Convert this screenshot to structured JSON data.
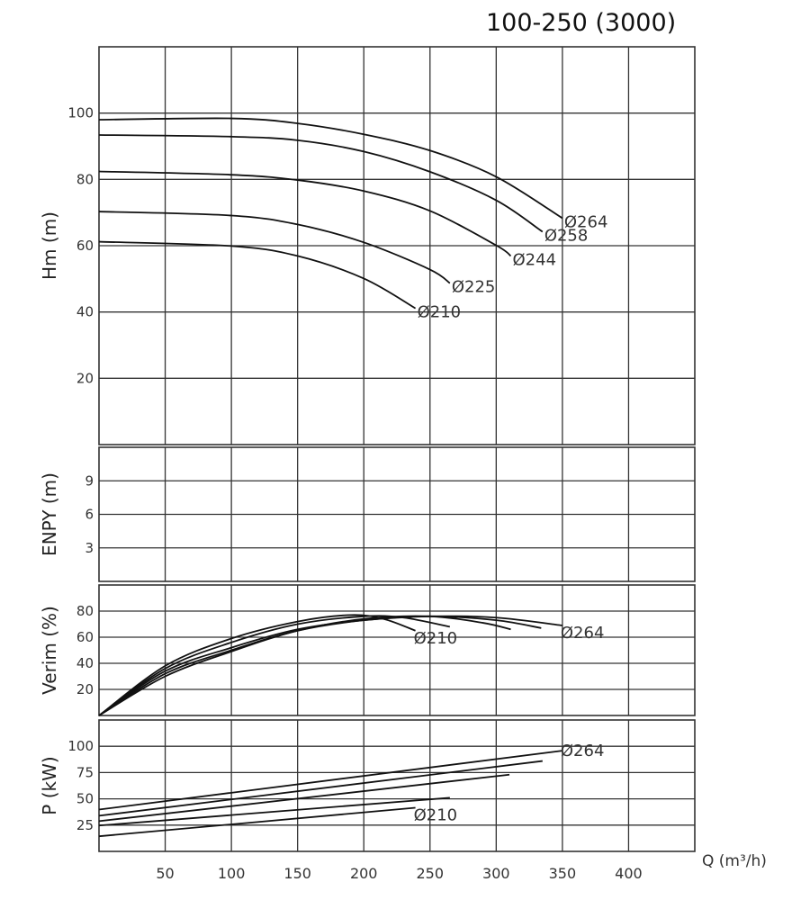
{
  "chart_data": {
    "type": "line",
    "title": "100-250 (3000)",
    "xlabel": "Q (m³/h)",
    "xlim": [
      0,
      450
    ],
    "x_ticks": [
      50,
      100,
      150,
      200,
      250,
      300,
      350,
      400
    ],
    "grid": true,
    "panels": [
      {
        "id": "head",
        "ylabel": "Hm (m)",
        "ylim": [
          0,
          120
        ],
        "y_ticks": [
          20,
          40,
          60,
          80,
          100
        ],
        "series": [
          {
            "name": "Ø264",
            "points": [
              [
                0,
                98
              ],
              [
                100,
                98.4
              ],
              [
                150,
                96.9
              ],
              [
                200,
                93.6
              ],
              [
                250,
                88.7
              ],
              [
                300,
                80.8
              ],
              [
                350,
                68.3
              ]
            ]
          },
          {
            "name": "Ø258",
            "points": [
              [
                0,
                93.4
              ],
              [
                100,
                92.9
              ],
              [
                150,
                91.8
              ],
              [
                200,
                88.4
              ],
              [
                250,
                82.3
              ],
              [
                300,
                73.7
              ],
              [
                335,
                64.2
              ]
            ]
          },
          {
            "name": "Ø244",
            "points": [
              [
                0,
                82.4
              ],
              [
                100,
                81.4
              ],
              [
                150,
                79.8
              ],
              [
                200,
                76.5
              ],
              [
                250,
                70.5
              ],
              [
                300,
                60.1
              ],
              [
                311,
                56.9
              ]
            ]
          },
          {
            "name": "Ø225",
            "points": [
              [
                0,
                70.3
              ],
              [
                100,
                69.1
              ],
              [
                150,
                66.4
              ],
              [
                200,
                61
              ],
              [
                250,
                52.8
              ],
              [
                265,
                48.7
              ]
            ]
          },
          {
            "name": "Ø210",
            "points": [
              [
                0,
                61.2
              ],
              [
                100,
                59.9
              ],
              [
                150,
                56.9
              ],
              [
                200,
                50.1
              ],
              [
                239,
                41.1
              ]
            ]
          }
        ],
        "annotations": [
          "Ø264",
          "Ø258",
          "Ø244",
          "Ø225",
          "Ø210"
        ]
      },
      {
        "id": "npsh",
        "ylabel": "ENPY (m)",
        "ylim": [
          0,
          12
        ],
        "y_ticks": [
          3,
          6,
          9
        ],
        "series": [],
        "annotations": []
      },
      {
        "id": "efficiency",
        "ylabel": "Verim (%)",
        "ylim": [
          0,
          100
        ],
        "y_ticks": [
          20,
          40,
          60,
          80
        ],
        "series": [
          {
            "name": "Ø264",
            "points": [
              [
                0,
                0
              ],
              [
                50,
                34
              ],
              [
                100,
                52
              ],
              [
                150,
                66
              ],
              [
                200,
                73
              ],
              [
                250,
                76
              ],
              [
                300,
                75
              ],
              [
                350,
                69
              ]
            ]
          },
          {
            "name": "Ø258",
            "points": [
              [
                0,
                0
              ],
              [
                50,
                32
              ],
              [
                100,
                50
              ],
              [
                150,
                65
              ],
              [
                200,
                73
              ],
              [
                250,
                76
              ],
              [
                300,
                73
              ],
              [
                334,
                67
              ]
            ]
          },
          {
            "name": "Ø244",
            "points": [
              [
                0,
                0
              ],
              [
                50,
                30
              ],
              [
                100,
                49
              ],
              [
                150,
                65
              ],
              [
                200,
                74
              ],
              [
                250,
                76
              ],
              [
                290,
                71
              ],
              [
                311,
                66
              ]
            ]
          },
          {
            "name": "Ø225",
            "points": [
              [
                0,
                0
              ],
              [
                50,
                36
              ],
              [
                100,
                56
              ],
              [
                150,
                70
              ],
              [
                200,
                76
              ],
              [
                230,
                75
              ],
              [
                265,
                68
              ]
            ]
          },
          {
            "name": "Ø210",
            "points": [
              [
                0,
                0
              ],
              [
                50,
                38
              ],
              [
                100,
                59
              ],
              [
                150,
                72
              ],
              [
                190,
                77
              ],
              [
                215,
                74
              ],
              [
                239,
                65
              ]
            ]
          }
        ],
        "annotations": [
          "Ø264",
          "Ø210"
        ]
      },
      {
        "id": "power",
        "ylabel": "P (kW)",
        "ylim": [
          0,
          125
        ],
        "y_ticks": [
          25,
          50,
          75,
          100
        ],
        "series": [
          {
            "name": "Ø264",
            "points": [
              [
                0,
                39.8
              ],
              [
                350,
                95.8
              ]
            ]
          },
          {
            "name": "Ø258",
            "points": [
              [
                0,
                33.9
              ],
              [
                335,
                86
              ]
            ]
          },
          {
            "name": "Ø244",
            "points": [
              [
                0,
                28.8
              ],
              [
                310,
                73
              ]
            ]
          },
          {
            "name": "Ø225",
            "points": [
              [
                0,
                24.6
              ],
              [
                265,
                51
              ]
            ]
          },
          {
            "name": "Ø210",
            "points": [
              [
                0,
                14.4
              ],
              [
                239,
                41.5
              ]
            ]
          }
        ],
        "annotations": [
          "Ø264",
          "Ø210"
        ]
      }
    ]
  }
}
